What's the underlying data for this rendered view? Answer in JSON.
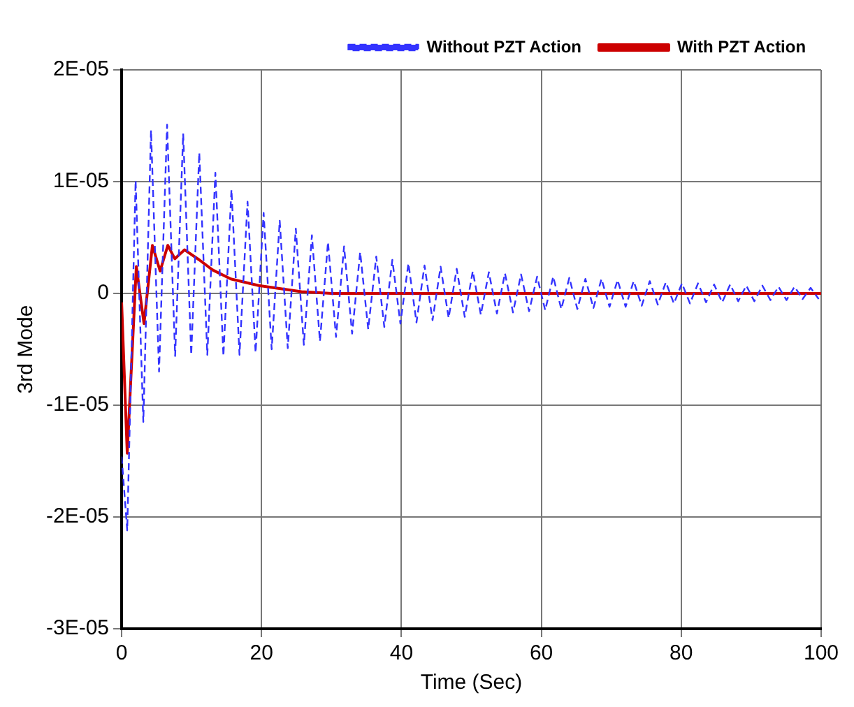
{
  "chart_data": {
    "type": "line",
    "xlabel": "Time (Sec)",
    "ylabel": "3rd Mode",
    "xlim": [
      0,
      100
    ],
    "xticks": [
      0,
      20,
      40,
      60,
      80,
      100
    ],
    "ylim": [
      -3e-05,
      2e-05
    ],
    "yticks": [
      {
        "value": -3e-05,
        "label": "-3E-05"
      },
      {
        "value": -2e-05,
        "label": "-2E-05"
      },
      {
        "value": -1e-05,
        "label": "-1E-05"
      },
      {
        "value": 0,
        "label": "0"
      },
      {
        "value": 1e-05,
        "label": "1E-05"
      },
      {
        "value": 2e-05,
        "label": "2E-05"
      }
    ],
    "grid": true,
    "legend": "top right",
    "marker": "none",
    "series": [
      {
        "name": "Without PZT Action",
        "color": "#3333ff",
        "line_style": "dashed",
        "x": [
          0,
          0.8,
          2.0,
          3.1,
          4.2,
          5.35,
          6.5,
          7.65,
          8.8,
          9.95,
          11.1,
          12.25,
          13.4,
          14.55,
          15.7,
          16.85,
          18.0,
          19.15,
          20.3,
          21.45,
          22.6,
          23.75,
          24.9,
          26.05,
          27.2,
          28.35,
          29.5,
          30.65,
          31.8,
          32.95,
          34.1,
          35.25,
          36.4,
          37.55,
          38.7,
          39.85,
          41.0,
          42.15,
          43.3,
          44.45,
          45.6,
          46.75,
          47.9,
          49.05,
          50.2,
          51.35,
          52.5,
          53.65,
          54.8,
          55.95,
          57.1,
          58.25,
          59.4,
          60.55,
          61.7,
          62.85,
          64.0,
          65.15,
          66.3,
          67.45,
          68.6,
          69.75,
          70.9,
          72.05,
          73.2,
          74.35,
          75.5,
          76.65,
          77.8,
          78.95,
          80.1,
          81.25,
          82.4,
          83.55,
          84.7,
          85.85,
          87.0,
          88.15,
          89.3,
          90.45,
          91.6,
          92.75,
          93.9,
          95.05,
          96.2,
          97.35,
          98.5,
          99.65
        ],
        "values": [
          -1.46e-05,
          -2.12e-05,
          1.01e-05,
          -1.15e-05,
          1.46e-05,
          -7e-06,
          1.51e-05,
          -5.6e-06,
          1.43e-05,
          -5.5e-06,
          1.26e-05,
          -5.5e-06,
          1.08e-05,
          -5.6e-06,
          9.3e-06,
          -5.5e-06,
          8.2e-06,
          -5.3e-06,
          7.2e-06,
          -5e-06,
          6.5e-06,
          -4.9e-06,
          5.8e-06,
          -4.6e-06,
          5.2e-06,
          -4.3e-06,
          4.6e-06,
          -3.9e-06,
          4.2e-06,
          -3.6e-06,
          3.7e-06,
          -3.2e-06,
          3.3e-06,
          -3e-06,
          3e-06,
          -2.7e-06,
          2.7e-06,
          -2.6e-06,
          2.5e-06,
          -2.4e-06,
          2.4e-06,
          -2.2e-06,
          2.2e-06,
          -2.1e-06,
          2e-06,
          -1.9e-06,
          1.9e-06,
          -1.8e-06,
          1.8e-06,
          -1.7e-06,
          1.7e-06,
          -1.6e-06,
          1.5e-06,
          -1.5e-06,
          1.5e-06,
          -1.4e-06,
          1.4e-06,
          -1.4e-06,
          1.3e-06,
          -1.3e-06,
          1.3e-06,
          -1.2e-06,
          1.2e-06,
          -1.2e-06,
          1.1e-06,
          -1.1e-06,
          1.1e-06,
          -1e-06,
          1e-06,
          -9e-07,
          9e-07,
          -9e-07,
          9e-07,
          -8e-07,
          8e-07,
          -8e-07,
          8e-07,
          -7e-07,
          7e-07,
          -7e-07,
          7e-07,
          -6e-07,
          6e-07,
          -6e-07,
          6e-07,
          -5e-07,
          5e-07,
          -5e-07
        ]
      },
      {
        "name": "With PZT Action",
        "color": "#cc0000",
        "line_style": "solid",
        "x": [
          0,
          0.8,
          2.1,
          3.2,
          4.4,
          5.5,
          6.6,
          7.6,
          9.0,
          11.1,
          13.0,
          15.6,
          19.6,
          25.7,
          30,
          40,
          60,
          80,
          100
        ],
        "values": [
          -8e-07,
          -1.43e-05,
          2.4e-06,
          -2.7e-06,
          4.3e-06,
          2e-06,
          4.3e-06,
          3.1e-06,
          3.9e-06,
          3e-06,
          2.1e-06,
          1.3e-06,
          7e-07,
          1.5e-07,
          0,
          0,
          0,
          0,
          0
        ]
      }
    ]
  }
}
